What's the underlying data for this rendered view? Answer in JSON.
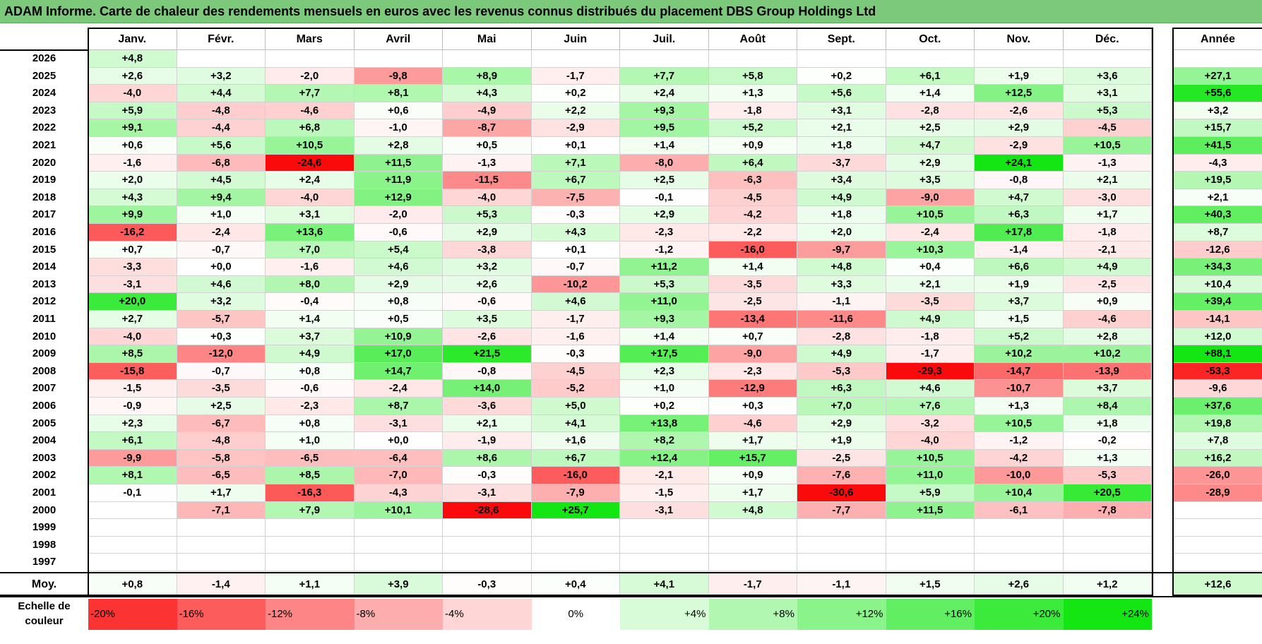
{
  "title": "ADAM Informe. Carte de chaleur des rendements mensuels en euros avec les revenus connus distribués du placement DBS Group Holdings Ltd",
  "chart_data": {
    "type": "heatmap",
    "months": [
      "Janv.",
      "Févr.",
      "Mars",
      "Avril",
      "Mai",
      "Juin",
      "Juil.",
      "Août",
      "Sept.",
      "Oct.",
      "Nov.",
      "Déc."
    ],
    "annual_header": "Année",
    "rows": [
      {
        "year": "2026",
        "months": [
          "+4,8",
          "",
          "",
          "",
          "",
          "",
          "",
          "",
          "",
          "",
          "",
          ""
        ],
        "annual": ""
      },
      {
        "year": "2025",
        "months": [
          "+2,6",
          "+3,2",
          "-2,0",
          "-9,8",
          "+8,9",
          "-1,7",
          "+7,7",
          "+5,8",
          "+0,2",
          "+6,1",
          "+1,9",
          "+3,6"
        ],
        "annual": "+27,1"
      },
      {
        "year": "2024",
        "months": [
          "-4,0",
          "+4,4",
          "+7,7",
          "+8,1",
          "+4,3",
          "+0,2",
          "+2,4",
          "+1,3",
          "+5,6",
          "+1,4",
          "+12,5",
          "+3,1"
        ],
        "annual": "+55,6"
      },
      {
        "year": "2023",
        "months": [
          "+5,9",
          "-4,8",
          "-4,6",
          "+0,6",
          "-4,9",
          "+2,2",
          "+9,3",
          "-1,8",
          "+3,1",
          "-2,8",
          "-2,6",
          "+5,3"
        ],
        "annual": "+3,2"
      },
      {
        "year": "2022",
        "months": [
          "+9,1",
          "-4,4",
          "+6,8",
          "-1,0",
          "-8,7",
          "-2,9",
          "+9,5",
          "+5,2",
          "+2,1",
          "+2,5",
          "+2,9",
          "-4,5"
        ],
        "annual": "+15,7"
      },
      {
        "year": "2021",
        "months": [
          "+0,6",
          "+5,6",
          "+10,5",
          "+2,8",
          "+0,5",
          "+0,1",
          "+1,4",
          "+0,9",
          "+1,8",
          "+4,7",
          "-2,9",
          "+10,5"
        ],
        "annual": "+41,5"
      },
      {
        "year": "2020",
        "months": [
          "-1,6",
          "-6,8",
          "-24,6",
          "+11,5",
          "-1,3",
          "+7,1",
          "-8,0",
          "+6,4",
          "-3,7",
          "+2,9",
          "+24,1",
          "-1,3"
        ],
        "annual": "-4,3"
      },
      {
        "year": "2019",
        "months": [
          "+2,0",
          "+4,5",
          "+2,4",
          "+11,9",
          "-11,5",
          "+6,7",
          "+2,5",
          "-6,3",
          "+3,4",
          "+3,5",
          "-0,8",
          "+2,1"
        ],
        "annual": "+19,5"
      },
      {
        "year": "2018",
        "months": [
          "+4,3",
          "+9,4",
          "-4,0",
          "+12,9",
          "-4,0",
          "-7,5",
          "-0,1",
          "-4,5",
          "+4,9",
          "-9,0",
          "+4,7",
          "-3,0"
        ],
        "annual": "+2,1"
      },
      {
        "year": "2017",
        "months": [
          "+9,9",
          "+1,0",
          "+3,1",
          "-2,0",
          "+5,3",
          "-0,3",
          "+2,9",
          "-4,2",
          "+1,8",
          "+10,5",
          "+6,3",
          "+1,7"
        ],
        "annual": "+40,3"
      },
      {
        "year": "2016",
        "months": [
          "-16,2",
          "-2,4",
          "+13,6",
          "-0,6",
          "+2,9",
          "+4,3",
          "-2,3",
          "-2,2",
          "+2,0",
          "-2,4",
          "+17,8",
          "-1,8"
        ],
        "annual": "+8,7"
      },
      {
        "year": "2015",
        "months": [
          "+0,7",
          "-0,7",
          "+7,0",
          "+5,4",
          "-3,8",
          "+0,1",
          "-1,2",
          "-16,0",
          "-9,7",
          "+10,3",
          "-1,4",
          "-2,1"
        ],
        "annual": "-12,6"
      },
      {
        "year": "2014",
        "months": [
          "-3,3",
          "+0,0",
          "-1,6",
          "+4,6",
          "+3,2",
          "-0,7",
          "+11,2",
          "+1,4",
          "+4,8",
          "+0,4",
          "+6,6",
          "+4,9"
        ],
        "annual": "+34,3"
      },
      {
        "year": "2013",
        "months": [
          "-3,1",
          "+4,6",
          "+8,0",
          "+2,9",
          "+2,6",
          "-10,2",
          "+5,3",
          "-3,5",
          "+3,3",
          "+2,1",
          "+1,9",
          "-2,5"
        ],
        "annual": "+10,4"
      },
      {
        "year": "2012",
        "months": [
          "+20,0",
          "+3,2",
          "-0,4",
          "+0,8",
          "-0,6",
          "+4,6",
          "+11,0",
          "-2,5",
          "-1,1",
          "-3,5",
          "+3,7",
          "+0,9"
        ],
        "annual": "+39,4"
      },
      {
        "year": "2011",
        "months": [
          "+2,7",
          "-5,7",
          "+1,4",
          "+0,5",
          "+3,5",
          "-1,7",
          "+9,3",
          "-13,4",
          "-11,6",
          "+4,9",
          "+1,5",
          "-4,6"
        ],
        "annual": "-14,1"
      },
      {
        "year": "2010",
        "months": [
          "-4,0",
          "+0,3",
          "+3,7",
          "+10,9",
          "-2,6",
          "-1,6",
          "+1,4",
          "+0,7",
          "-2,8",
          "-1,8",
          "+5,2",
          "+2,8"
        ],
        "annual": "+12,0"
      },
      {
        "year": "2009",
        "months": [
          "+8,5",
          "-12,0",
          "+4,9",
          "+17,0",
          "+21,5",
          "-0,3",
          "+17,5",
          "-9,0",
          "+4,9",
          "-1,7",
          "+10,2",
          "+10,2"
        ],
        "annual": "+88,1"
      },
      {
        "year": "2008",
        "months": [
          "-15,8",
          "-0,7",
          "+0,8",
          "+14,7",
          "-0,8",
          "-4,5",
          "+2,3",
          "-2,3",
          "-5,3",
          "-29,3",
          "-14,7",
          "-13,9"
        ],
        "annual": "-53,3"
      },
      {
        "year": "2007",
        "months": [
          "-1,5",
          "-3,5",
          "-0,6",
          "-2,4",
          "+14,0",
          "-5,2",
          "+1,0",
          "-12,9",
          "+6,3",
          "+4,6",
          "-10,7",
          "+3,7"
        ],
        "annual": "-9,6"
      },
      {
        "year": "2006",
        "months": [
          "-0,9",
          "+2,5",
          "-2,3",
          "+8,7",
          "-3,6",
          "+5,0",
          "+0,2",
          "+0,3",
          "+7,0",
          "+7,6",
          "+1,3",
          "+8,4"
        ],
        "annual": "+37,6"
      },
      {
        "year": "2005",
        "months": [
          "+2,3",
          "-6,7",
          "+0,8",
          "-3,1",
          "+2,1",
          "+4,1",
          "+13,8",
          "-4,6",
          "+2,9",
          "-3,2",
          "+10,5",
          "+1,8"
        ],
        "annual": "+19,8"
      },
      {
        "year": "2004",
        "months": [
          "+6,1",
          "-4,8",
          "+1,0",
          "+0,0",
          "-1,9",
          "+1,6",
          "+8,2",
          "+1,7",
          "+1,9",
          "-4,0",
          "-1,2",
          "-0,2"
        ],
        "annual": "+7,8"
      },
      {
        "year": "2003",
        "months": [
          "-9,9",
          "-5,8",
          "-6,5",
          "-6,4",
          "+8,6",
          "+6,7",
          "+12,4",
          "+15,7",
          "-2,5",
          "+10,5",
          "-4,2",
          "+1,3"
        ],
        "annual": "+16,2"
      },
      {
        "year": "2002",
        "months": [
          "+8,1",
          "-6,5",
          "+8,5",
          "-7,0",
          "-0,3",
          "-16,0",
          "-2,1",
          "+0,9",
          "-7,6",
          "+11,0",
          "-10,0",
          "-5,3"
        ],
        "annual": "-26,0"
      },
      {
        "year": "2001",
        "months": [
          "-0,1",
          "+1,7",
          "-16,3",
          "-4,3",
          "-3,1",
          "-7,9",
          "-1,5",
          "+1,7",
          "-30,6",
          "+5,9",
          "+10,4",
          "+20,5"
        ],
        "annual": "-28,9"
      },
      {
        "year": "2000",
        "months": [
          "",
          "-7,1",
          "+7,9",
          "+10,1",
          "-28,6",
          "+25,7",
          "-3,1",
          "+4,8",
          "-7,7",
          "+11,5",
          "-6,1",
          "-7,8"
        ],
        "annual": ""
      },
      {
        "year": "1999",
        "months": [
          "",
          "",
          "",
          "",
          "",
          "",
          "",
          "",
          "",
          "",
          "",
          ""
        ],
        "annual": ""
      },
      {
        "year": "1998",
        "months": [
          "",
          "",
          "",
          "",
          "",
          "",
          "",
          "",
          "",
          "",
          "",
          ""
        ],
        "annual": ""
      },
      {
        "year": "1997",
        "months": [
          "",
          "",
          "",
          "",
          "",
          "",
          "",
          "",
          "",
          "",
          "",
          ""
        ],
        "annual": ""
      }
    ],
    "average": {
      "label": "Moy.",
      "months": [
        "+0,8",
        "-1,4",
        "+1,1",
        "+3,9",
        "-0,3",
        "+0,4",
        "+4,1",
        "-1,7",
        "-1,1",
        "+1,5",
        "+2,6",
        "+1,2"
      ],
      "annual": "+12,6"
    },
    "scale": {
      "label_line1": "Echelle de",
      "label_line2": "couleur",
      "steps": [
        "-20%",
        "-16%",
        "-12%",
        "-8%",
        "-4%",
        "0%",
        "+4%",
        "+8%",
        "+12%",
        "+16%",
        "+20%",
        "+24%"
      ]
    }
  }
}
